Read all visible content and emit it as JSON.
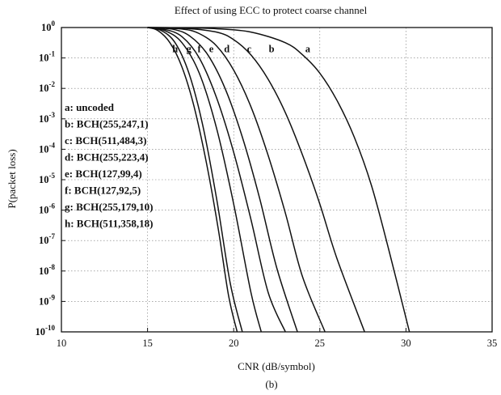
{
  "chart_data": {
    "type": "line",
    "title": "Effect of using ECC to protect coarse channel",
    "xlabel": "CNR (dB/symbol)",
    "ylabel": "P(packet loss)",
    "caption": "(b)",
    "xlim": [
      10,
      35
    ],
    "ylim_exponent": [
      -10,
      0
    ],
    "y_scale": "log",
    "grid": true,
    "x_ticks": [
      "10",
      "15",
      "20",
      "25",
      "30",
      "35"
    ],
    "y_ticks": [
      {
        "base": "10",
        "exp": "0",
        "value": 0
      },
      {
        "base": "10",
        "exp": "-1",
        "value": -1
      },
      {
        "base": "10",
        "exp": "-2",
        "value": -2
      },
      {
        "base": "10",
        "exp": "-3",
        "value": -3
      },
      {
        "base": "10",
        "exp": "-4",
        "value": -4
      },
      {
        "base": "10",
        "exp": "-5",
        "value": -5
      },
      {
        "base": "10",
        "exp": "-6",
        "value": -6
      },
      {
        "base": "10",
        "exp": "-7",
        "value": -7
      },
      {
        "base": "10",
        "exp": "-8",
        "value": -8
      },
      {
        "base": "10",
        "exp": "-9",
        "value": -9
      },
      {
        "base": "10",
        "exp": "-10",
        "value": -10
      }
    ],
    "legend_position": "left",
    "legend": [
      "a: uncoded",
      "b: BCH(255,247,1)",
      "c: BCH(511,484,3)",
      "d: BCH(255,223,4)",
      "e: BCH(127,99,4)",
      "f: BCH(127,92,5)",
      "g: BCH(255,179,10)",
      "h: BCH(511,358,18)"
    ],
    "series": [
      {
        "name": "a",
        "x": [
          15.0,
          17.0,
          19.0,
          21.0,
          23.0,
          24.0,
          25.0,
          26.0,
          27.0,
          28.0,
          29.0,
          30.2
        ],
        "y": [
          0,
          -0.01,
          -0.04,
          -0.15,
          -0.5,
          -0.9,
          -1.5,
          -2.4,
          -3.6,
          -5.2,
          -7.3,
          -10.0
        ]
      },
      {
        "name": "b",
        "x": [
          15.0,
          17.0,
          19.0,
          20.0,
          21.0,
          22.0,
          23.0,
          24.0,
          25.0,
          26.0,
          27.6
        ],
        "y": [
          0,
          -0.02,
          -0.15,
          -0.4,
          -0.9,
          -1.7,
          -2.8,
          -4.2,
          -5.8,
          -7.6,
          -10.0
        ]
      },
      {
        "name": "c",
        "x": [
          15.0,
          17.0,
          18.0,
          19.0,
          20.0,
          21.0,
          22.0,
          23.0,
          24.0,
          25.3
        ],
        "y": [
          0,
          -0.05,
          -0.2,
          -0.6,
          -1.4,
          -2.6,
          -4.2,
          -6.1,
          -8.2,
          -10.0
        ]
      },
      {
        "name": "d",
        "x": [
          15.0,
          16.5,
          17.5,
          18.5,
          19.5,
          20.5,
          21.5,
          22.5,
          23.7
        ],
        "y": [
          0,
          -0.06,
          -0.3,
          -0.9,
          -2.0,
          -3.6,
          -5.6,
          -7.9,
          -10.0
        ]
      },
      {
        "name": "e",
        "x": [
          15.0,
          16.0,
          17.0,
          18.0,
          19.0,
          20.0,
          21.0,
          22.0,
          23.0
        ],
        "y": [
          0,
          -0.06,
          -0.3,
          -1.0,
          -2.3,
          -4.1,
          -6.3,
          -8.7,
          -10.0
        ]
      },
      {
        "name": "f",
        "x": [
          15.0,
          16.0,
          17.0,
          18.0,
          19.0,
          20.0,
          21.0,
          21.6
        ],
        "y": [
          0,
          -0.1,
          -0.5,
          -1.5,
          -3.3,
          -5.8,
          -8.7,
          -10.0
        ]
      },
      {
        "name": "g",
        "x": [
          15.0,
          15.8,
          16.6,
          17.4,
          18.2,
          19.0,
          19.8,
          20.5
        ],
        "y": [
          0,
          -0.1,
          -0.5,
          -1.5,
          -3.2,
          -5.6,
          -8.4,
          -10.0
        ]
      },
      {
        "name": "h",
        "x": [
          15.0,
          15.6,
          16.3,
          17.0,
          17.7,
          18.4,
          19.1,
          19.7,
          20.2
        ],
        "y": [
          0,
          -0.1,
          -0.5,
          -1.3,
          -2.6,
          -4.4,
          -6.6,
          -8.8,
          -10.0
        ]
      }
    ],
    "curve_labels": [
      {
        "text": "h",
        "x": 16.6,
        "y": -0.7
      },
      {
        "text": "g",
        "x": 17.4,
        "y": -0.7
      },
      {
        "text": "f",
        "x": 18.0,
        "y": -0.7
      },
      {
        "text": "e",
        "x": 18.7,
        "y": -0.7
      },
      {
        "text": "d",
        "x": 19.6,
        "y": -0.7
      },
      {
        "text": "c",
        "x": 20.9,
        "y": -0.7
      },
      {
        "text": "b",
        "x": 22.2,
        "y": -0.7
      },
      {
        "text": "a",
        "x": 24.3,
        "y": -0.7
      }
    ]
  }
}
